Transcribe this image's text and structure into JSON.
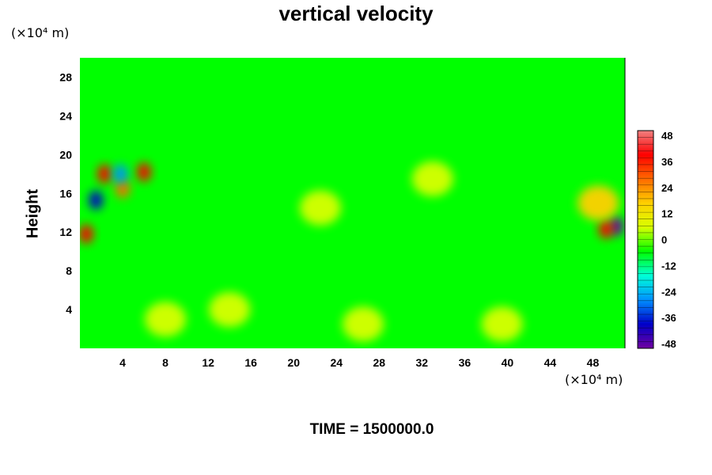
{
  "chart_data": {
    "type": "heatmap",
    "title": "vertical velocity",
    "ylabel": "Height",
    "xlabel": "",
    "x_unit": "(×10⁴ m)",
    "y_unit": "(×10⁴ m)",
    "xlim": [
      0,
      51
    ],
    "ylim": [
      0,
      30
    ],
    "x_ticks": [
      "4",
      "8",
      "12",
      "16",
      "20",
      "24",
      "28",
      "32",
      "36",
      "40",
      "44",
      "48"
    ],
    "x_tick_values": [
      4,
      8,
      12,
      16,
      20,
      24,
      28,
      32,
      36,
      40,
      44,
      48
    ],
    "y_ticks": [
      "4",
      "8",
      "12",
      "16",
      "20",
      "24",
      "28"
    ],
    "y_tick_values": [
      4,
      8,
      12,
      16,
      20,
      24,
      28
    ],
    "colorbar": {
      "range": [
        -48,
        48
      ],
      "ticks": [
        "48",
        "36",
        "24",
        "12",
        "0",
        "-12",
        "-24",
        "-36",
        "-48"
      ],
      "tick_values": [
        48,
        36,
        24,
        12,
        0,
        -12,
        -24,
        -36,
        -48
      ],
      "colors": [
        "#f08080",
        "#ff0000",
        "#ff6a00",
        "#ffd000",
        "#d8ff00",
        "#00ff00",
        "#00ffd8",
        "#0090ff",
        "#0000c8",
        "#7000a0"
      ]
    },
    "background_value": 0,
    "features": [
      {
        "x": 2.3,
        "y": 18.0,
        "value": 40
      },
      {
        "x": 6.0,
        "y": 18.2,
        "value": 38
      },
      {
        "x": 4.0,
        "y": 16.5,
        "value": 30
      },
      {
        "x": 1.5,
        "y": 15.3,
        "value": -42
      },
      {
        "x": 3.8,
        "y": 18.0,
        "value": -30
      },
      {
        "x": 0.6,
        "y": 11.8,
        "value": 36
      },
      {
        "x": 50.2,
        "y": 12.6,
        "value": -44
      },
      {
        "x": 49.2,
        "y": 12.3,
        "value": 34
      },
      {
        "x": 48.5,
        "y": 15.0,
        "value": 14
      },
      {
        "x": 26.5,
        "y": 2.5,
        "value": 10
      },
      {
        "x": 39.5,
        "y": 2.5,
        "value": 10
      },
      {
        "x": 8.0,
        "y": 3.0,
        "value": 6
      },
      {
        "x": 14.0,
        "y": 4.0,
        "value": 6
      },
      {
        "x": 21.0,
        "y": 2.5,
        "value": -6
      },
      {
        "x": 34.0,
        "y": 3.0,
        "value": -6
      },
      {
        "x": 47.0,
        "y": 2.5,
        "value": -6
      },
      {
        "x": 22.5,
        "y": 14.5,
        "value": 8
      },
      {
        "x": 14.0,
        "y": 17.5,
        "value": -6
      },
      {
        "x": 30.5,
        "y": 16.0,
        "value": -8
      },
      {
        "x": 33.0,
        "y": 17.5,
        "value": 8
      }
    ]
  },
  "footer": {
    "time_label": "TIME = 1500000.0"
  }
}
